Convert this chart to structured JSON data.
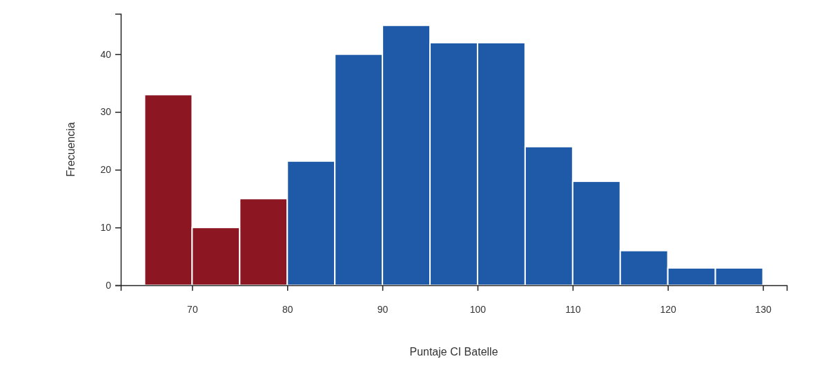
{
  "chart_data": {
    "type": "histogram",
    "xlabel": "Puntaje CI Batelle",
    "ylabel": "Frecuencia",
    "bins": [
      65,
      70,
      75,
      80,
      85,
      90,
      95,
      100,
      105,
      110,
      115,
      120,
      125,
      130
    ],
    "values": [
      33,
      10,
      15,
      21.5,
      40,
      45,
      42,
      42,
      24,
      18,
      6,
      3,
      3
    ],
    "colors": [
      "#8c1723",
      "#8c1723",
      "#8c1723",
      "#1f5aa8",
      "#1f5aa8",
      "#1f5aa8",
      "#1f5aa8",
      "#1f5aa8",
      "#1f5aa8",
      "#1f5aa8",
      "#1f5aa8",
      "#1f5aa8",
      "#1f5aa8"
    ],
    "xlim": [
      62.5,
      132.5
    ],
    "ylim": [
      0,
      47
    ],
    "xticks": [
      70,
      80,
      90,
      100,
      110,
      120,
      130
    ],
    "yticks": [
      0,
      10,
      20,
      30,
      40
    ],
    "grid": false
  }
}
